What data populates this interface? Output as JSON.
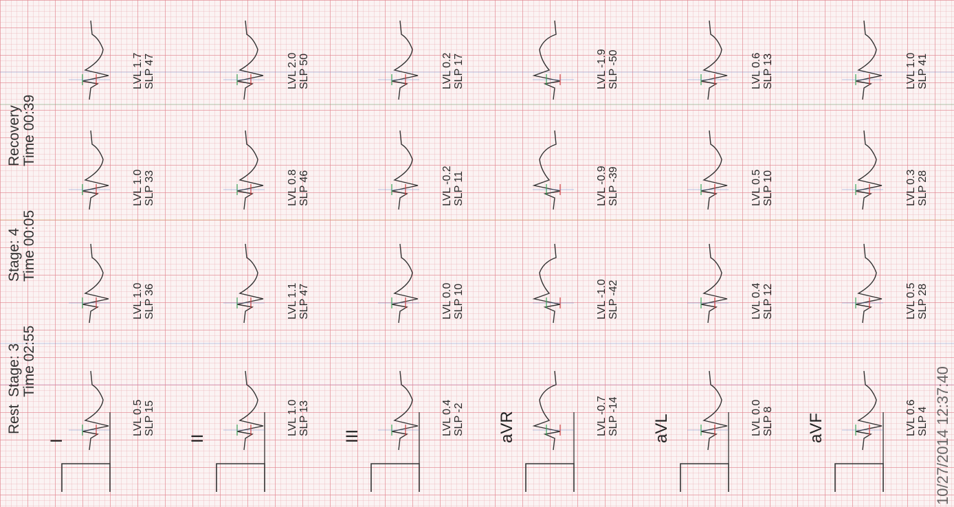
{
  "headers": [
    {
      "line1": "Rest",
      "line2": ""
    },
    {
      "line1": "Stage: 3",
      "line2": "Time 02:55"
    },
    {
      "line1": "Stage: 4",
      "line2": "Time 00:05"
    },
    {
      "line1": "Recovery",
      "line2": "Time 00:39"
    }
  ],
  "leads": [
    {
      "name": "I",
      "measurements": [
        {
          "lvl": "LVL 0.5",
          "slp": "SLP 15"
        },
        {
          "lvl": "LVL 1.0",
          "slp": "SLP 36"
        },
        {
          "lvl": "LVL 1.0",
          "slp": "SLP 33"
        },
        {
          "lvl": "LVL 1.7",
          "slp": "SLP 47"
        }
      ]
    },
    {
      "name": "II",
      "measurements": [
        {
          "lvl": "LVL 1.0",
          "slp": "SLP 13"
        },
        {
          "lvl": "LVL 1.1",
          "slp": "SLP 47"
        },
        {
          "lvl": "LVL 0.8",
          "slp": "SLP 46"
        },
        {
          "lvl": "LVL 2.0",
          "slp": "SLP 50"
        }
      ]
    },
    {
      "name": "III",
      "measurements": [
        {
          "lvl": "LVL 0.4",
          "slp": "SLP -2"
        },
        {
          "lvl": "LVL 0.0",
          "slp": "SLP 10"
        },
        {
          "lvl": "LVL -0.2",
          "slp": "SLP 11"
        },
        {
          "lvl": "LVL 0.2",
          "slp": "SLP 17"
        }
      ]
    },
    {
      "name": "aVR",
      "measurements": [
        {
          "lvl": "LVL -0.7",
          "slp": "SLP -14"
        },
        {
          "lvl": "LVL -1.0",
          "slp": "SLP -42"
        },
        {
          "lvl": "LVL -0.9",
          "slp": "SLP -39"
        },
        {
          "lvl": "LVL -1.9",
          "slp": "SLP -50"
        }
      ]
    },
    {
      "name": "aVL",
      "measurements": [
        {
          "lvl": "LVL 0.0",
          "slp": "SLP 8"
        },
        {
          "lvl": "LVL 0.4",
          "slp": "SLP 12"
        },
        {
          "lvl": "LVL 0.5",
          "slp": "SLP 10"
        },
        {
          "lvl": "LVL 0.6",
          "slp": "SLP 13"
        }
      ]
    },
    {
      "name": "aVF",
      "measurements": [
        {
          "lvl": "LVL 0.6",
          "slp": "SLP 4"
        },
        {
          "lvl": "LVL 0.5",
          "slp": "SLP 28"
        },
        {
          "lvl": "LVL 0.3",
          "slp": "SLP 28"
        },
        {
          "lvl": "LVL 1.0",
          "slp": "SLP 41"
        }
      ]
    }
  ],
  "footer_date": "10/27/2014 12:37:40",
  "colors": {
    "grid_major": "#e1828c",
    "grid_minor": "#ebafb4",
    "trace": "#333333",
    "marker_blue": "#4a7bd0",
    "marker_green": "#3aa55a",
    "marker_red": "#d04040"
  }
}
